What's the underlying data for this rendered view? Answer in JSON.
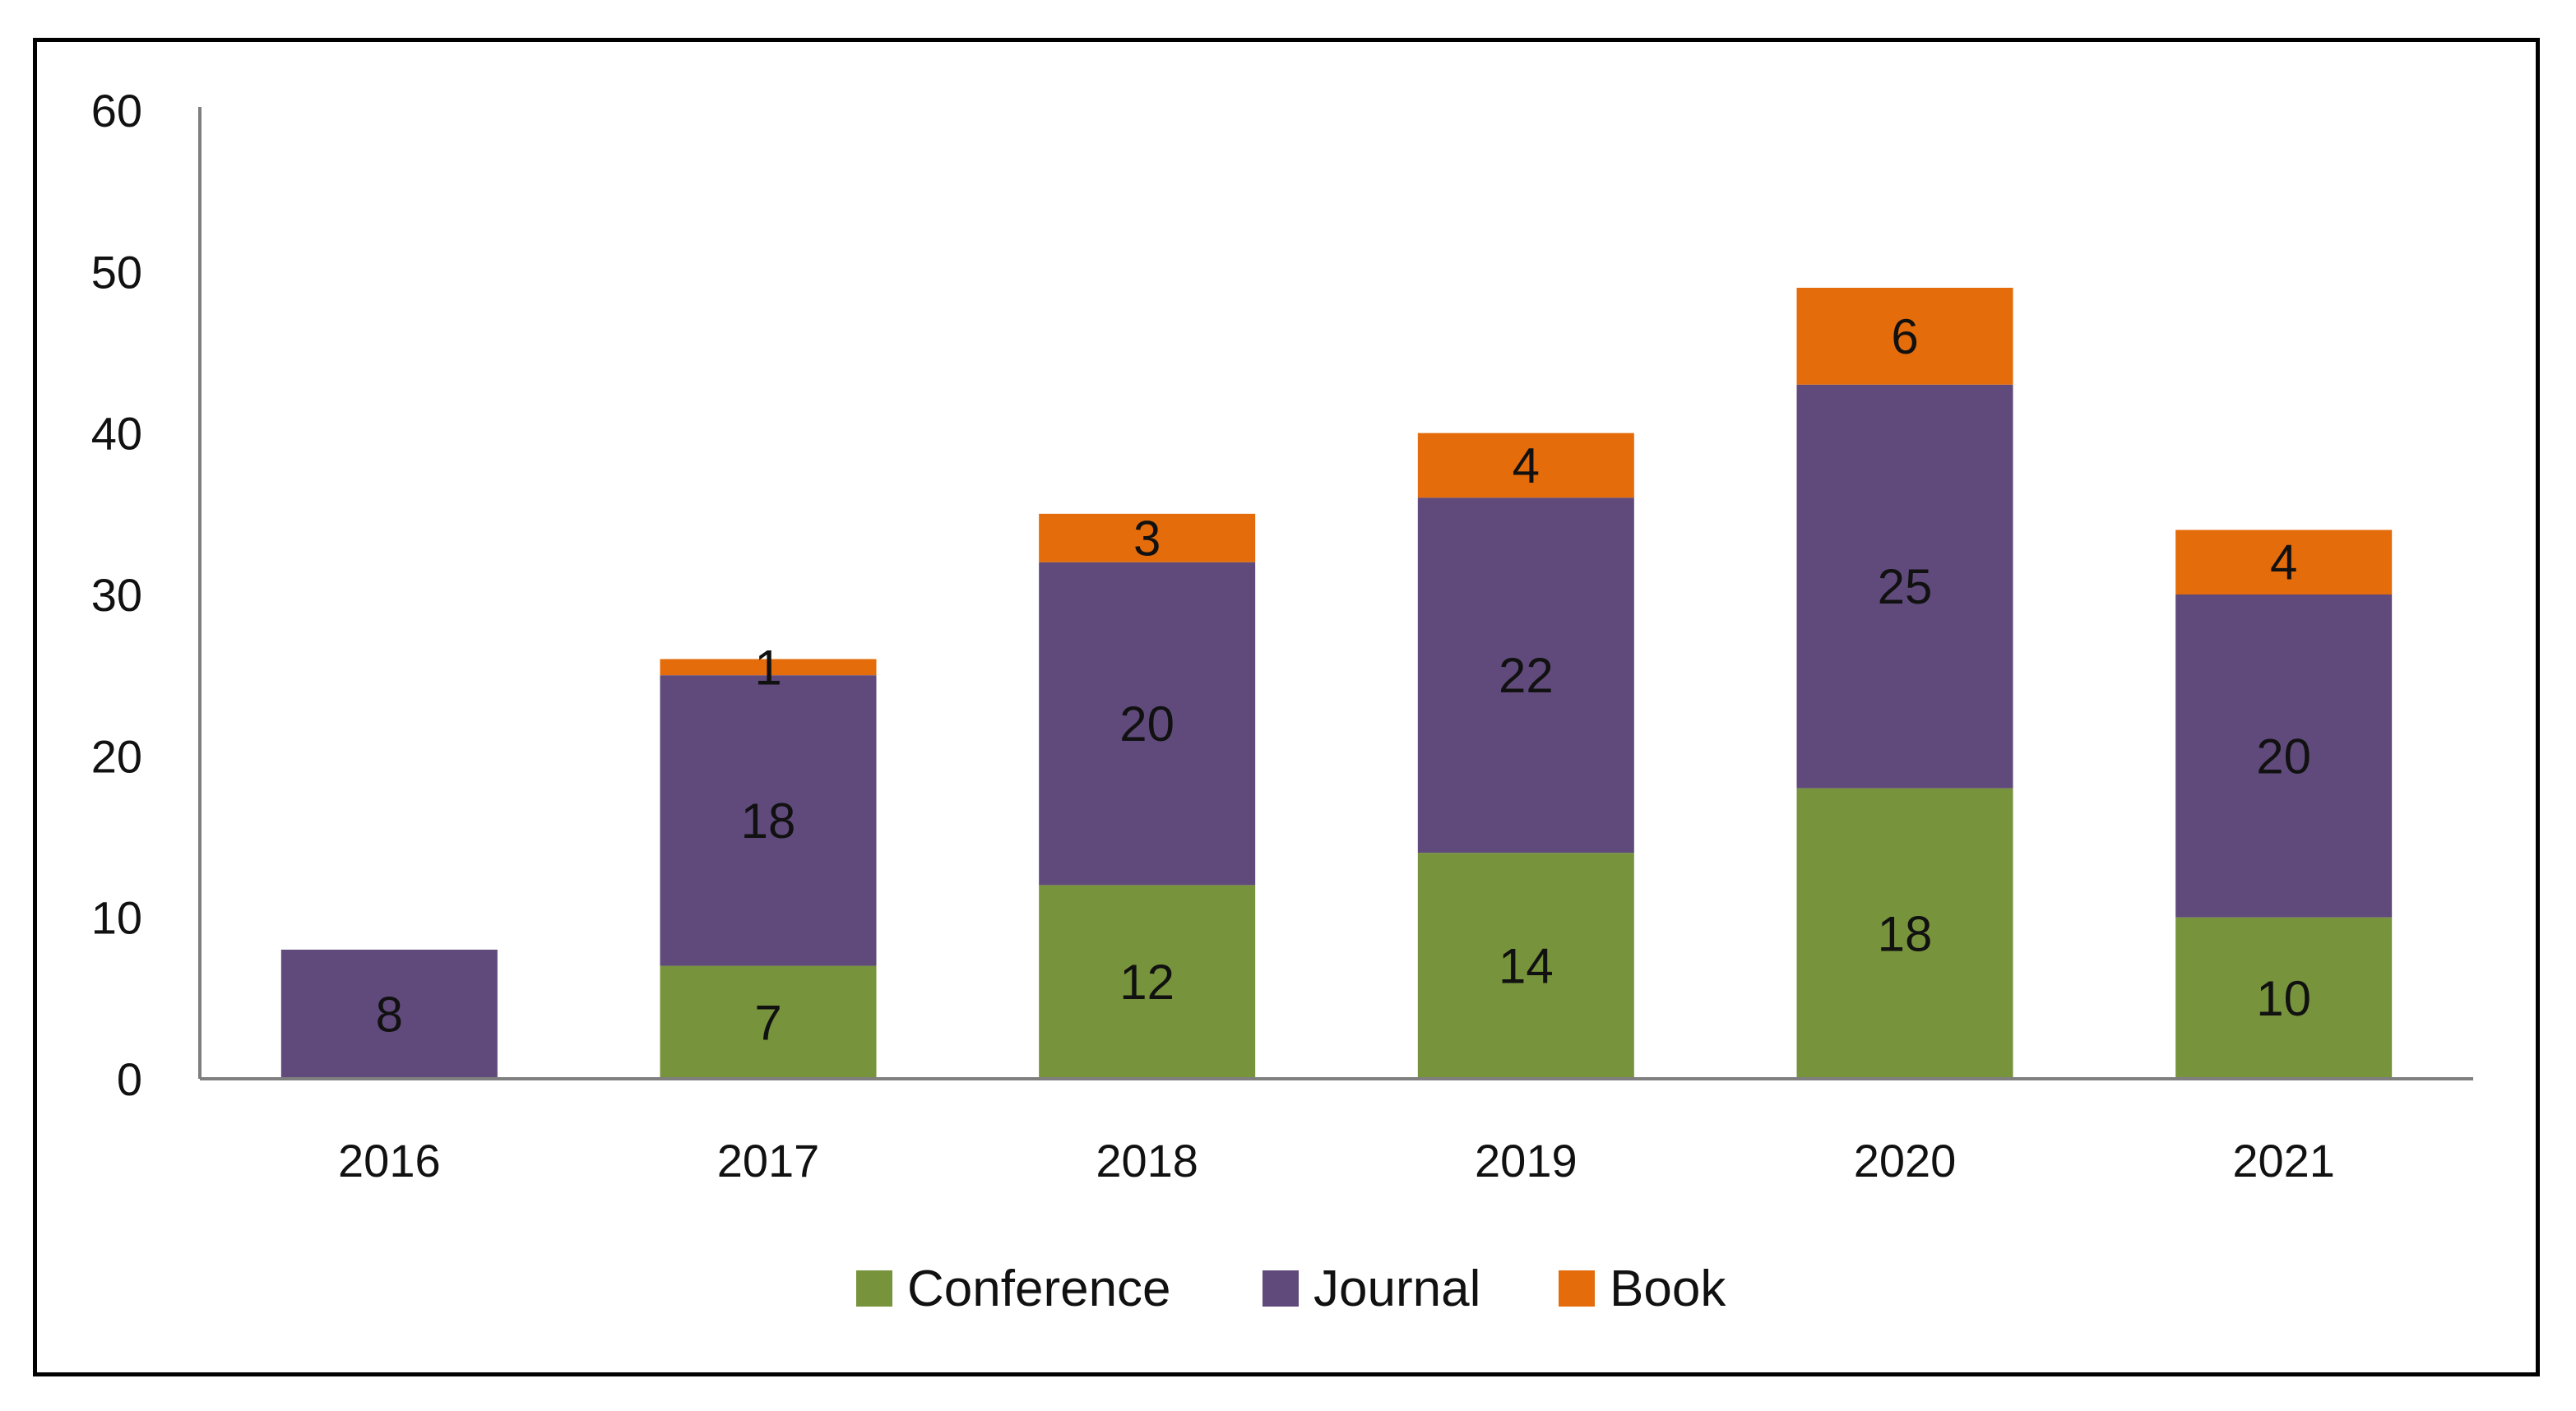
{
  "chart_data": {
    "type": "bar",
    "stacked": true,
    "title": "",
    "xlabel": "",
    "ylabel": "",
    "categories": [
      "2016",
      "2017",
      "2018",
      "2019",
      "2020",
      "2021"
    ],
    "ylim": [
      0,
      60
    ],
    "yticks": [
      0,
      10,
      20,
      30,
      40,
      50,
      60
    ],
    "grid": false,
    "legend_position": "bottom",
    "series": [
      {
        "name": "Conference",
        "color": "#77933C",
        "values": [
          0,
          7,
          12,
          14,
          18,
          10
        ],
        "labels": [
          null,
          "7",
          "12",
          "14",
          "18",
          "10"
        ]
      },
      {
        "name": "Journal",
        "color": "#604A7B",
        "values": [
          8,
          18,
          20,
          22,
          25,
          20
        ],
        "labels": [
          "8",
          "18",
          "20",
          "22",
          "25",
          "20"
        ]
      },
      {
        "name": "Book",
        "color": "#E46C0A",
        "values": [
          0,
          1,
          3,
          4,
          6,
          4
        ],
        "labels": [
          null,
          "1",
          "3",
          "4",
          "6",
          "4"
        ]
      }
    ]
  }
}
